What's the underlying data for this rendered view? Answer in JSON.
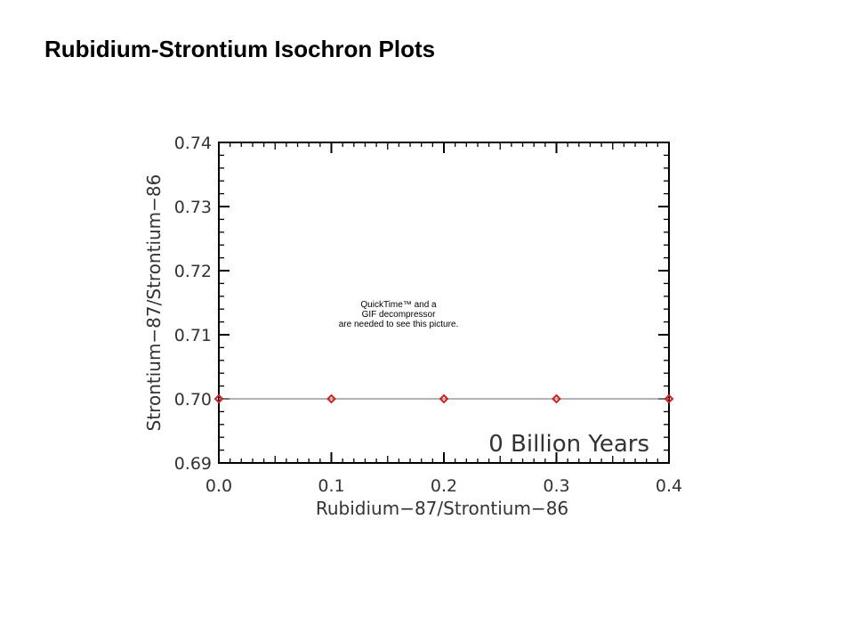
{
  "slide": {
    "title": "Rubidium-Strontium Isochron Plots"
  },
  "placeholder_notice": {
    "lines": [
      "QuickTime™ and a",
      "GIF decompressor",
      "are needed to see this picture."
    ]
  },
  "colors": {
    "marker": "#cc2222",
    "line": "#999999",
    "axis": "#000000",
    "text": "#333333"
  },
  "chart_data": {
    "type": "line",
    "xlabel": "Rubidium−87/Strontium−86",
    "ylabel": "Strontium−87/Strontium−86",
    "annotation": "0 Billion Years",
    "xlim": [
      0.0,
      0.4
    ],
    "ylim": [
      0.69,
      0.74
    ],
    "x_ticks": [
      "0.0",
      "0.1",
      "0.2",
      "0.3",
      "0.4"
    ],
    "y_ticks": [
      "0.69",
      "0.70",
      "0.71",
      "0.72",
      "0.73",
      "0.74"
    ],
    "grid": false,
    "series": [
      {
        "x": [
          0.0,
          0.1,
          0.2,
          0.3,
          0.4
        ],
        "y": [
          0.7,
          0.7,
          0.7,
          0.7,
          0.7
        ],
        "marker": "diamond"
      }
    ]
  }
}
